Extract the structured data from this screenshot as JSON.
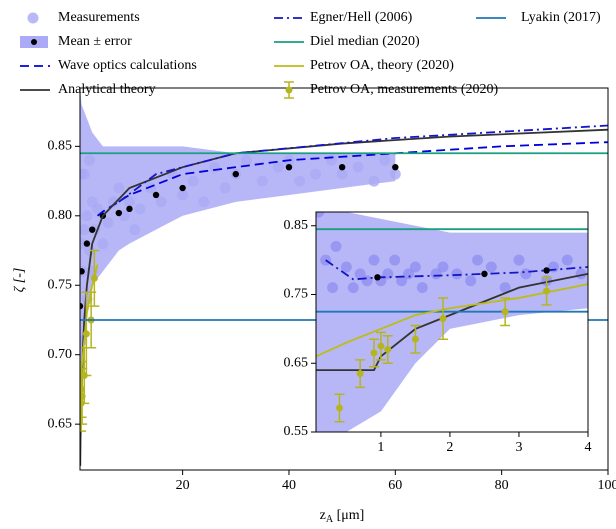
{
  "chart_data": [
    {
      "type": "line",
      "xlabel": [
        "z",
        "A",
        " [μm]"
      ],
      "ylabel": "ζ [-]",
      "xlim": [
        0.7,
        100
      ],
      "ylim": [
        0.617,
        0.892
      ],
      "xticks": [
        20,
        40,
        60,
        80,
        100
      ],
      "yticks": [
        0.65,
        {
          "value": 0.7,
          "label": "0.70"
        },
        0.75,
        {
          "value": 0.8,
          "label": "0.80"
        },
        0.85
      ],
      "series": [
        {
          "name": "Measurements",
          "type": "scatter",
          "color": "#7f7ff0",
          "x": [
            1,
            1.2,
            1.5,
            2,
            2.5,
            3,
            3.5,
            4,
            5,
            6,
            7,
            8,
            9,
            10,
            11,
            12,
            14,
            16,
            18,
            20,
            22,
            24,
            26,
            28,
            30,
            32,
            35,
            38,
            40,
            42,
            45,
            48,
            50,
            53,
            56,
            58,
            60,
            1.5,
            2,
            3,
            1,
            0.8,
            2.5
          ],
          "values": [
            0.78,
            0.76,
            0.79,
            0.8,
            0.775,
            0.81,
            0.79,
            0.805,
            0.78,
            0.795,
            0.81,
            0.82,
            0.8,
            0.81,
            0.79,
            0.805,
            0.82,
            0.81,
            0.83,
            0.815,
            0.825,
            0.81,
            0.835,
            0.82,
            0.83,
            0.84,
            0.825,
            0.835,
            0.84,
            0.825,
            0.83,
            0.84,
            0.83,
            0.835,
            0.825,
            0.84,
            0.83,
            0.83,
            0.74,
            0.76,
            0.71,
            0.83,
            0.84
          ]
        },
        {
          "name": "Mean ± error",
          "type": "band",
          "color": "#aaaaf6",
          "marker_color": "#000000",
          "x": [
            0.7,
            1,
            2,
            3,
            5,
            8,
            10,
            15,
            20,
            30,
            40,
            50,
            60
          ],
          "values": [
            0.735,
            0.76,
            0.78,
            0.79,
            0.8,
            0.802,
            0.805,
            0.815,
            0.82,
            0.83,
            0.835,
            0.835,
            0.835
          ],
          "lower": [
            0.617,
            0.7,
            0.73,
            0.75,
            0.76,
            0.775,
            0.78,
            0.79,
            0.8,
            0.81,
            0.815,
            0.82,
            0.825
          ],
          "upper": [
            0.892,
            0.88,
            0.87,
            0.86,
            0.85,
            0.85,
            0.85,
            0.85,
            0.85,
            0.845,
            0.845,
            0.845,
            0.845
          ]
        },
        {
          "name": "Wave optics calculations",
          "type": "line",
          "linestyle": "dashed",
          "color": "#0000dd",
          "x": [
            4,
            5,
            10,
            20,
            40,
            60,
            80,
            100
          ],
          "values": [
            0.8,
            0.803,
            0.815,
            0.83,
            0.84,
            0.845,
            0.85,
            0.853
          ]
        },
        {
          "name": "Analytical theory",
          "type": "line",
          "linestyle": "solid",
          "color": "#333333",
          "x": [
            0.75,
            0.8,
            1,
            1.2,
            1.5,
            2,
            3,
            5,
            10,
            20,
            30,
            50,
            70,
            100
          ],
          "values": [
            0.62,
            0.64,
            0.67,
            0.7,
            0.725,
            0.75,
            0.78,
            0.8,
            0.82,
            0.835,
            0.845,
            0.852,
            0.857,
            0.862
          ]
        },
        {
          "name": "Egner/Hell (2006)",
          "type": "line",
          "linestyle": "dashdot",
          "color": "#1414c8",
          "x": [
            8,
            15,
            30,
            60,
            100
          ],
          "values": [
            0.81,
            0.83,
            0.845,
            0.856,
            0.865
          ]
        },
        {
          "name": "Diel median (2020)",
          "type": "line",
          "linestyle": "solid",
          "color": "#1a9e80",
          "x": [
            0.7,
            100
          ],
          "values": [
            0.845,
            0.845
          ]
        },
        {
          "name": "Petrov OA, theory (2020)",
          "type": "line",
          "linestyle": "solid",
          "color": "#bcbc1a",
          "x": [
            0.7,
            1,
            2,
            3,
            4
          ],
          "values": [
            0.66,
            0.69,
            0.73,
            0.75,
            0.765
          ]
        },
        {
          "name": "Petrov OA, measurements (2020)",
          "type": "errorbar",
          "color": "#b5b520",
          "x": [
            0.9,
            1,
            1.1,
            1.5,
            1.9,
            2.8,
            3.4
          ],
          "values": [
            0.665,
            0.675,
            0.67,
            0.685,
            0.715,
            0.725,
            0.755
          ],
          "errors": [
            0.02,
            0.02,
            0.02,
            0.02,
            0.03,
            0.02,
            0.02
          ]
        },
        {
          "name": "Lyakin (2017)",
          "type": "line",
          "linestyle": "solid",
          "color": "#1f77b4",
          "x": [
            0.7,
            100
          ],
          "values": [
            0.725,
            0.725
          ]
        }
      ]
    },
    {
      "type": "line",
      "xlim": [
        0.06,
        4
      ],
      "ylim": [
        0.55,
        0.87
      ],
      "xticks": [
        1,
        2,
        3,
        4
      ],
      "yticks": [
        0.55,
        0.65,
        0.75,
        0.85
      ],
      "series": [
        {
          "type": "band",
          "color": "#aaaaf6",
          "marker_color": "#000000",
          "x": [
            0.06,
            0.5,
            1,
            1.5,
            2,
            3,
            4
          ],
          "lower": [
            0.55,
            0.55,
            0.58,
            0.65,
            0.7,
            0.72,
            0.73
          ],
          "upper": [
            0.87,
            0.87,
            0.86,
            0.85,
            0.84,
            0.84,
            0.84
          ]
        },
        {
          "type": "scatter",
          "color": "#7f7ff0",
          "x": [
            0.1,
            0.2,
            0.3,
            0.35,
            0.5,
            0.6,
            0.7,
            0.8,
            0.9,
            1,
            1.1,
            1.2,
            1.3,
            1.4,
            1.5,
            1.6,
            1.8,
            1.9,
            2.1,
            2.3,
            2.4,
            2.6,
            2.8,
            3,
            3.1,
            3.4,
            3.5,
            3.7,
            3.9
          ],
          "values": [
            0.87,
            0.8,
            0.76,
            0.82,
            0.79,
            0.76,
            0.78,
            0.77,
            0.8,
            0.77,
            0.78,
            0.8,
            0.77,
            0.78,
            0.79,
            0.76,
            0.78,
            0.79,
            0.78,
            0.77,
            0.8,
            0.79,
            0.76,
            0.8,
            0.78,
            0.77,
            0.79,
            0.8,
            0.78
          ]
        },
        {
          "type": "line",
          "linestyle": "dashdot",
          "color": "#1414c8",
          "x": [
            0.2,
            0.6,
            1,
            2,
            3,
            4
          ],
          "values": [
            0.8,
            0.772,
            0.775,
            0.778,
            0.782,
            0.79
          ]
        },
        {
          "type": "dots",
          "color": "#000000",
          "x": [
            0.95,
            2.5,
            3.4
          ],
          "values": [
            0.775,
            0.78,
            0.785
          ]
        },
        {
          "type": "line",
          "linestyle": "solid",
          "color": "#333333",
          "x": [
            0.06,
            0.9,
            1,
            1.5,
            2,
            3,
            4
          ],
          "values": [
            0.64,
            0.64,
            0.66,
            0.7,
            0.72,
            0.76,
            0.78
          ]
        },
        {
          "type": "line",
          "linestyle": "solid",
          "color": "#1a9e80",
          "x": [
            0.06,
            4
          ],
          "values": [
            0.845,
            0.845
          ]
        },
        {
          "type": "line",
          "linestyle": "solid",
          "color": "#1f77b4",
          "x": [
            0.06,
            4
          ],
          "values": [
            0.725,
            0.725
          ]
        },
        {
          "type": "line",
          "linestyle": "solid",
          "color": "#bcbc1a",
          "x": [
            0.06,
            0.5,
            1,
            1.5,
            2,
            3,
            4
          ],
          "values": [
            0.66,
            0.68,
            0.7,
            0.72,
            0.73,
            0.745,
            0.765
          ]
        },
        {
          "type": "errorbar",
          "color": "#b5b520",
          "x": [
            0.4,
            0.7,
            0.9,
            1,
            1.1,
            1.5,
            1.9,
            2.8,
            3.4
          ],
          "values": [
            0.585,
            0.635,
            0.665,
            0.675,
            0.67,
            0.685,
            0.715,
            0.725,
            0.755
          ],
          "errors": [
            0.02,
            0.02,
            0.02,
            0.02,
            0.02,
            0.02,
            0.03,
            0.02,
            0.02
          ]
        }
      ]
    }
  ]
}
